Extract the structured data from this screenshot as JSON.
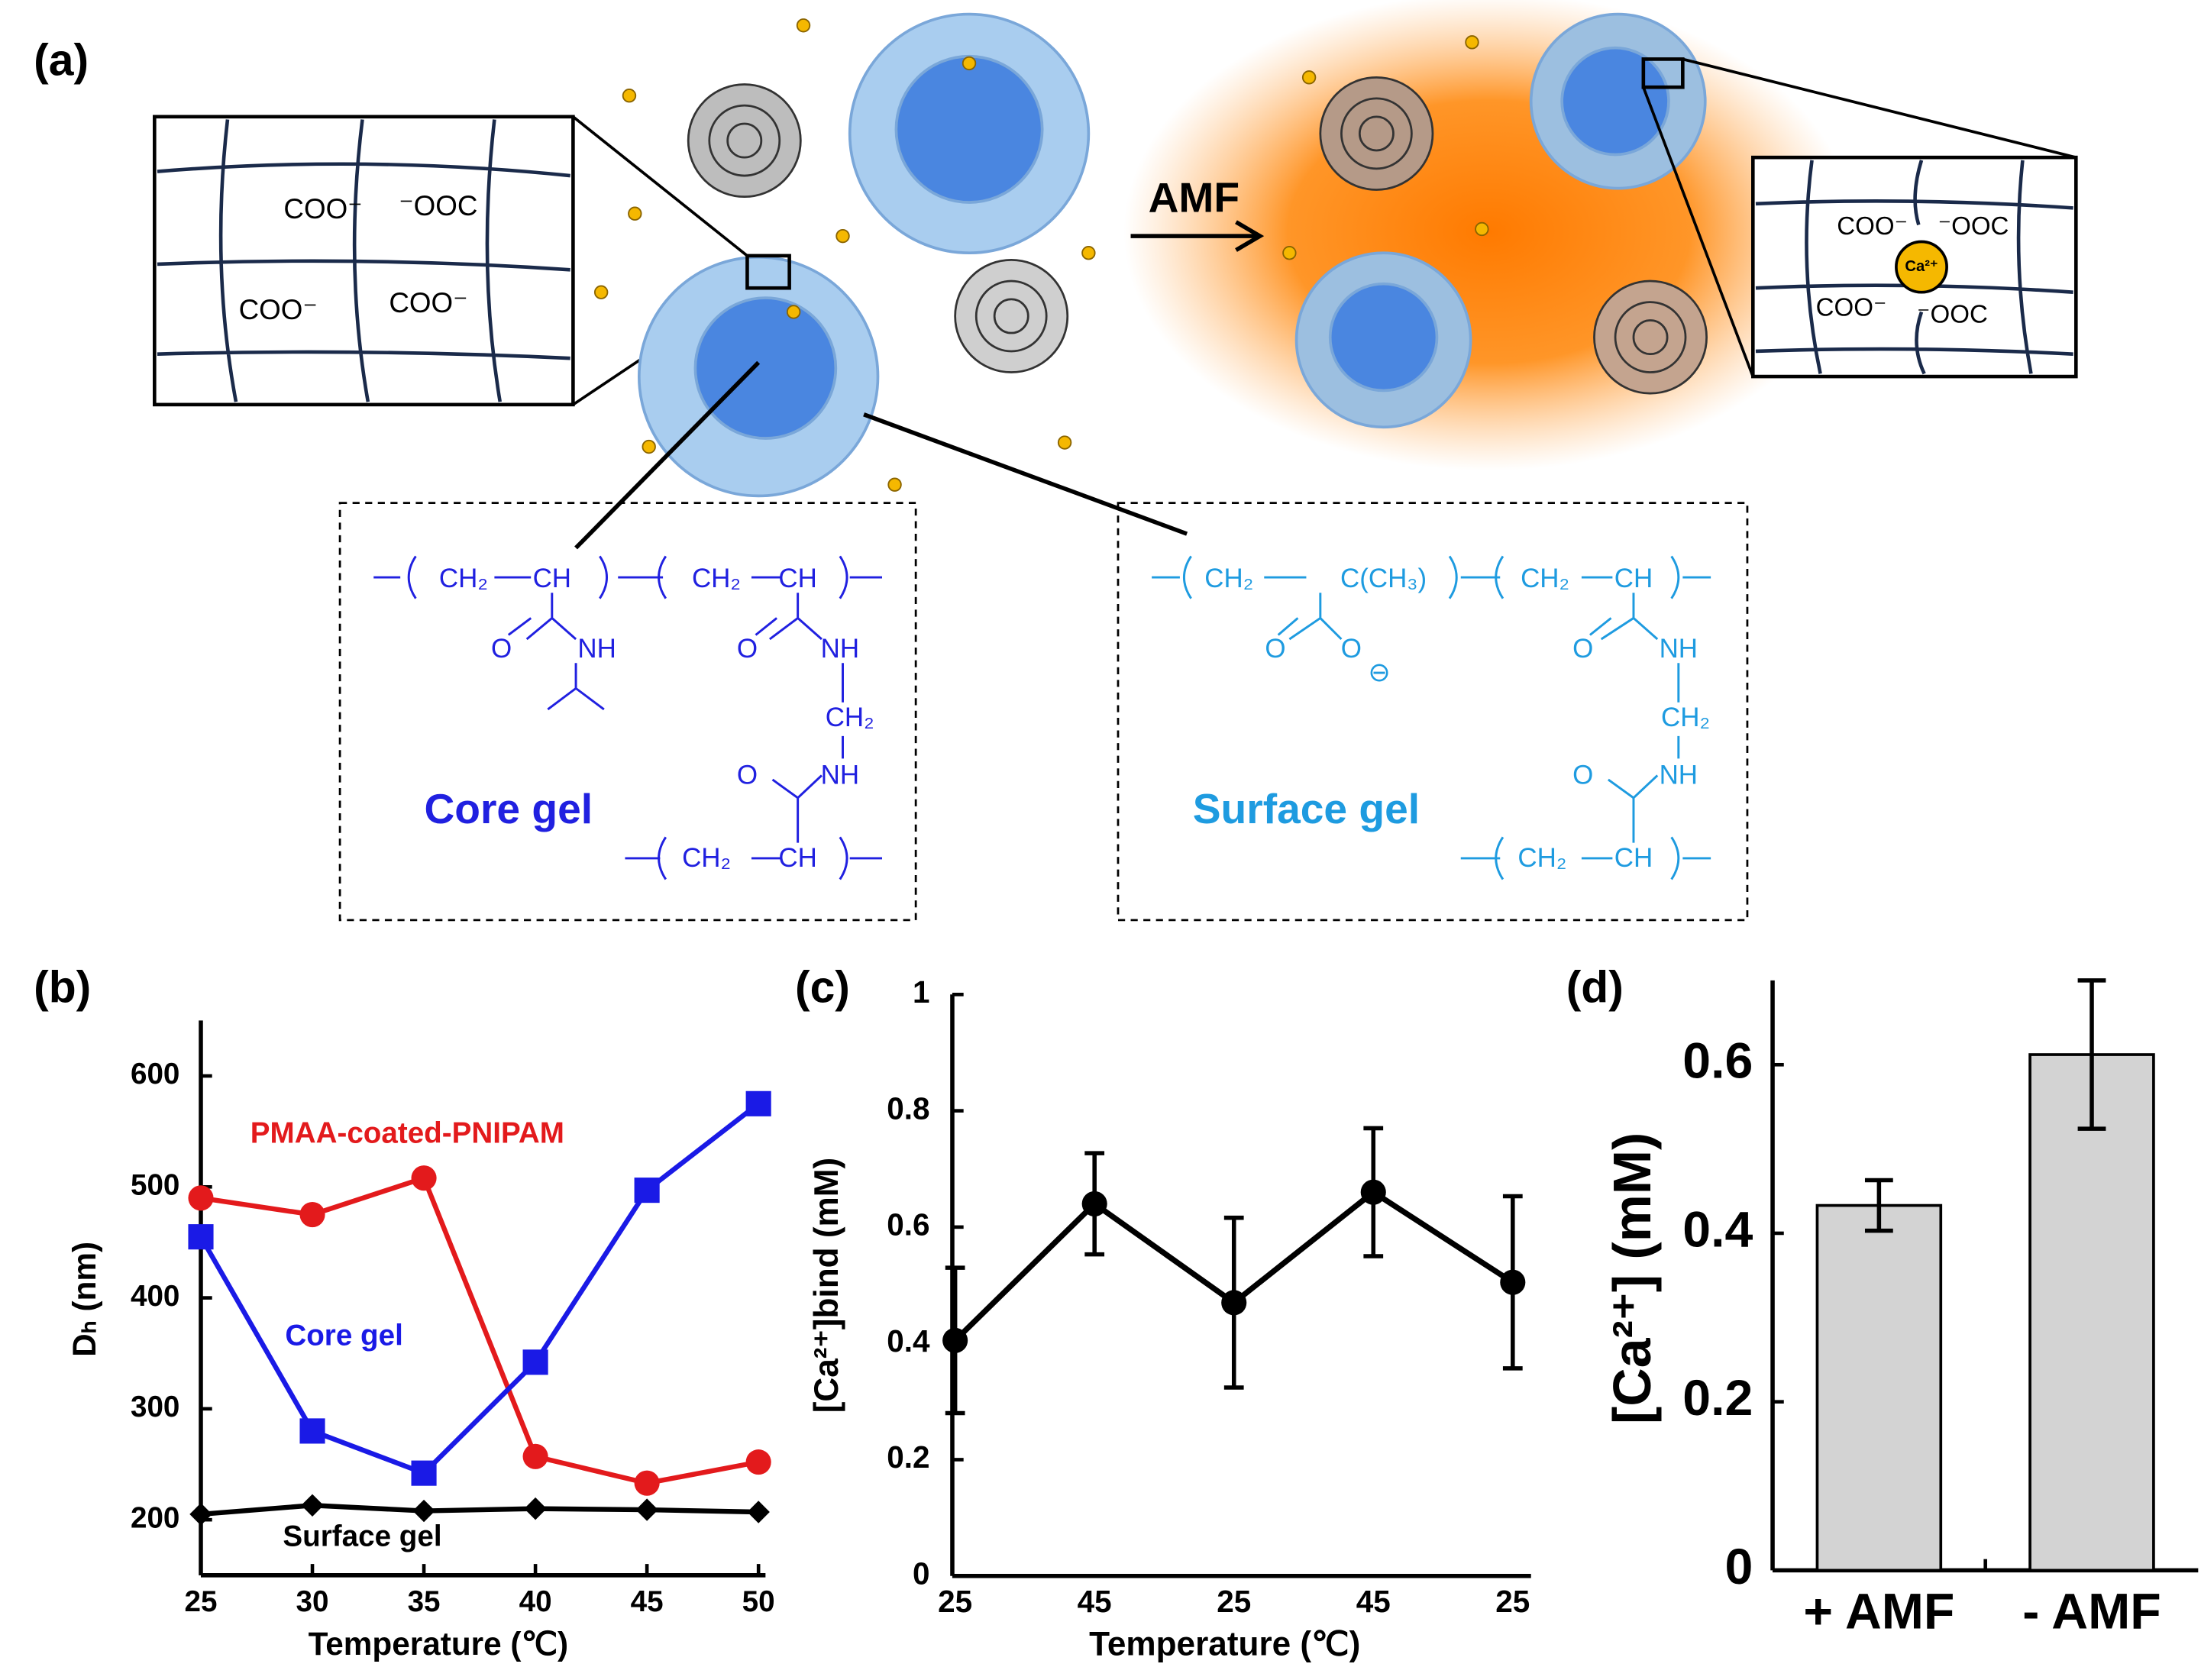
{
  "diagram": {
    "panel_labels": [
      "(a)",
      "(b)",
      "(c)",
      "(d)"
    ],
    "arrow_label": "AMF",
    "left_network_labels": [
      "COO⁻",
      "⁻OOC",
      "COO⁻",
      "COO⁻"
    ],
    "right_network_labels": [
      "COO⁻",
      "⁻OOC",
      "Ca²⁺",
      "COO⁻",
      "⁻OOC"
    ],
    "core_box": {
      "title": "Core gel",
      "groups": [
        "CH₂",
        "CH",
        "CH₂",
        "CH",
        "O",
        "NH",
        "O",
        "NH",
        "CH₂",
        "O",
        "NH",
        "CH₂",
        "CH"
      ]
    },
    "surface_box": {
      "title": "Surface gel",
      "groups": [
        "CH₂",
        "C(CH₃)",
        "CH₂",
        "CH",
        "O",
        "O",
        "⊖",
        "O",
        "NH",
        "CH₂",
        "O",
        "NH",
        "CH₂",
        "CH"
      ]
    }
  },
  "chart_data": [
    {
      "type": "line",
      "x": [
        25,
        30,
        35,
        40,
        45,
        50
      ],
      "xlim": [
        25,
        50
      ],
      "xticks": [
        25,
        30,
        35,
        40,
        45,
        50
      ],
      "ylim": [
        150,
        650
      ],
      "yticks": [
        200,
        300,
        400,
        500,
        600
      ],
      "xlabel": "Temperature (℃)",
      "ylabel": "Dₕ (nm)",
      "grid": false,
      "series": [
        {
          "name": "PMAA-coated-PNIPAM",
          "color": "#e31a1c",
          "marker": "circle",
          "values": [
            490,
            475,
            508,
            257,
            233,
            252
          ]
        },
        {
          "name": "Core gel",
          "color": "#1a1ae6",
          "marker": "square",
          "values": [
            455,
            280,
            242,
            342,
            497,
            575
          ]
        },
        {
          "name": "Surface gel",
          "color": "#000000",
          "marker": "diamond",
          "values": [
            205,
            213,
            208,
            210,
            209,
            207
          ]
        }
      ]
    },
    {
      "type": "errorline",
      "categories": [
        "25",
        "45",
        "25",
        "45",
        "25"
      ],
      "values": [
        0.405,
        0.64,
        0.47,
        0.66,
        0.505
      ],
      "errors": [
        0.125,
        0.087,
        0.146,
        0.11,
        0.148
      ],
      "ylim": [
        0,
        1
      ],
      "yticks": [
        0,
        0.2,
        0.4,
        0.6,
        0.8,
        1
      ],
      "xlabel": "Temperature (℃)",
      "ylabel": "[Ca²⁺]bind (mM)",
      "color": "#000000",
      "grid": false
    },
    {
      "type": "bar",
      "categories": [
        "+ AMF",
        "- AMF"
      ],
      "values": [
        0.433,
        0.612
      ],
      "errors": [
        0.03,
        0.088
      ],
      "ylim": [
        0,
        0.7
      ],
      "yticks": [
        0,
        0.2,
        0.4,
        0.6
      ],
      "ylabel": "[Ca²⁺] (mM)",
      "color": "#d3d3d3",
      "grid": false
    }
  ]
}
